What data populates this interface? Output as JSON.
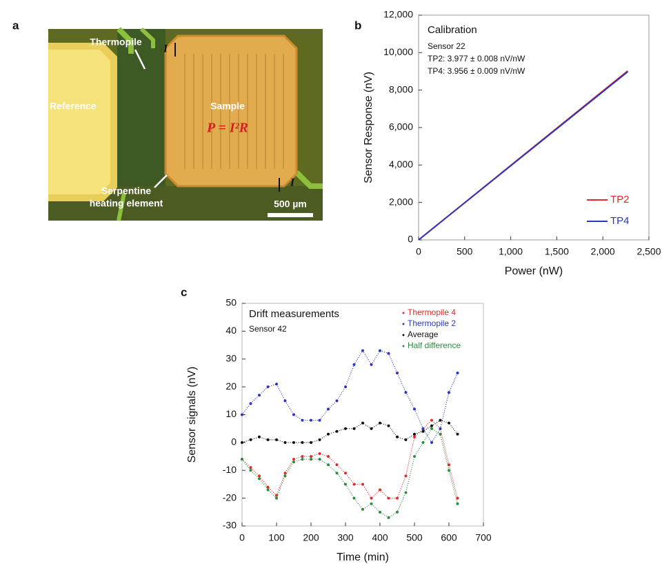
{
  "panel_labels": [
    "a",
    "b",
    "c"
  ],
  "photo": {
    "thermopile": "Thermopile",
    "reference": "Reference",
    "sample": "Sample",
    "formula": "P = I²R",
    "serpentine": [
      "Serpentine",
      "heating element"
    ],
    "scale": "500 µm",
    "current": [
      "I",
      "I"
    ]
  },
  "chart_data": [
    {
      "type": "line",
      "annotations": [
        "Calibration",
        "Sensor 22",
        "TP2:  3.977 ± 0.008 nV/nW",
        "TP4:  3.956 ± 0.009 nV/nW"
      ],
      "x_label": "Power (nW)",
      "y_label": "Sensor Response (nV)",
      "x": [
        0,
        2270
      ],
      "series": [
        {
          "name": "TP2",
          "color": "#e02a2a",
          "values": [
            0,
            9028
          ]
        },
        {
          "name": "TP4",
          "color": "#2b35c0",
          "values": [
            0,
            8980
          ]
        }
      ],
      "xlim": [
        0,
        2500
      ],
      "xticks": [
        0,
        500,
        {
          "value": 1000,
          "label": "1,000"
        },
        {
          "value": 1500,
          "label": "1,500"
        },
        {
          "value": 2000,
          "label": "2,000"
        },
        {
          "value": 2500,
          "label": "2,500"
        }
      ],
      "ylim": [
        0,
        12000
      ],
      "yticks": [
        0,
        {
          "value": 2000,
          "label": "2,000"
        },
        {
          "value": 4000,
          "label": "4,000"
        },
        {
          "value": 6000,
          "label": "6,000"
        },
        {
          "value": 8000,
          "label": "8,000"
        },
        {
          "value": 10000,
          "label": "10,000"
        },
        {
          "value": 12000,
          "label": "12,000"
        }
      ],
      "legend": "lower right"
    },
    {
      "type": "scatter",
      "annotations": [
        "Drift measurements",
        "Sensor 42"
      ],
      "x_label": "Time (min)",
      "y_label": "Sensor signals (nV)",
      "x": [
        0,
        25,
        50,
        75,
        100,
        125,
        150,
        175,
        200,
        225,
        250,
        275,
        300,
        325,
        350,
        375,
        400,
        425,
        450,
        475,
        500,
        525,
        550,
        575,
        600,
        625
      ],
      "series": [
        {
          "name": "Thermopile 4",
          "color": "#e02a2a",
          "values": [
            -6,
            -9,
            -12,
            -16,
            -19,
            -11,
            -6,
            -5,
            -5,
            -4,
            -5,
            -8,
            -11,
            -15,
            -15,
            -20,
            -17,
            -20,
            -20,
            -12,
            2,
            5,
            8,
            5,
            -8,
            -20
          ]
        },
        {
          "name": "Thermopile 2",
          "color": "#2b35c0",
          "values": [
            10,
            14,
            17,
            20,
            21,
            15,
            10,
            8,
            8,
            8,
            12,
            15,
            20,
            28,
            33,
            28,
            33,
            32,
            25,
            18,
            12,
            5,
            0,
            5,
            18,
            25
          ]
        },
        {
          "name": "Average",
          "color": "#111111",
          "values": [
            0,
            1,
            2,
            1,
            1,
            0,
            0,
            0,
            0,
            1,
            3,
            4,
            5,
            5,
            7,
            5,
            7,
            6,
            2,
            1,
            3,
            4,
            6,
            8,
            7,
            3
          ]
        },
        {
          "name": "Half difference",
          "color": "#2e8b3e",
          "values": [
            -6,
            -10,
            -13,
            -17,
            -20,
            -12,
            -7,
            -6,
            -6,
            -6,
            -8,
            -11,
            -15,
            -20,
            -24,
            -22,
            -25,
            -27,
            -25,
            -18,
            -5,
            0,
            5,
            3,
            -10,
            -22
          ]
        }
      ],
      "xlim": [
        0,
        700
      ],
      "xticks": [
        0,
        100,
        200,
        300,
        400,
        500,
        600,
        700
      ],
      "ylim": [
        -30,
        50
      ],
      "yticks": [
        -30,
        -20,
        -10,
        0,
        10,
        20,
        30,
        40,
        50
      ],
      "legend": "upper right"
    }
  ]
}
